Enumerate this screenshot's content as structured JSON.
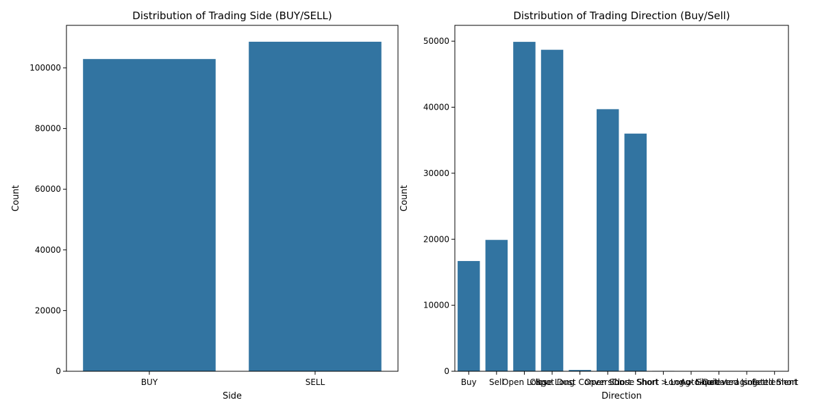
{
  "chart_data": [
    {
      "type": "bar",
      "title": "Distribution of Trading Side (BUY/SELL)",
      "xlabel": "Side",
      "ylabel": "Count",
      "categories": [
        "BUY",
        "SELL"
      ],
      "values": [
        102900,
        108600
      ],
      "ylim": [
        0,
        114000
      ],
      "yticks": [
        0,
        20000,
        40000,
        60000,
        80000,
        100000
      ],
      "bar_color": "#3274a1",
      "grid": false
    },
    {
      "type": "bar",
      "title": "Distribution of Trading Direction (Buy/Sell)",
      "xlabel": "Direction",
      "ylabel": "Count",
      "categories": [
        "Buy",
        "Sell",
        "Open Long",
        "Close Long",
        "Spot Dust Conversion",
        "Open Short",
        "Close Short",
        "Short > Long",
        "Long > Short",
        "Auto-Deleveraging",
        "Liquidated Isolated Short",
        "Settlement"
      ],
      "values": [
        16700,
        19900,
        49900,
        48700,
        200,
        39700,
        36000,
        60,
        50,
        5,
        5,
        5
      ],
      "ylim": [
        0,
        52400
      ],
      "yticks": [
        0,
        10000,
        20000,
        30000,
        40000,
        50000
      ],
      "bar_color": "#3274a1",
      "grid": false
    }
  ]
}
